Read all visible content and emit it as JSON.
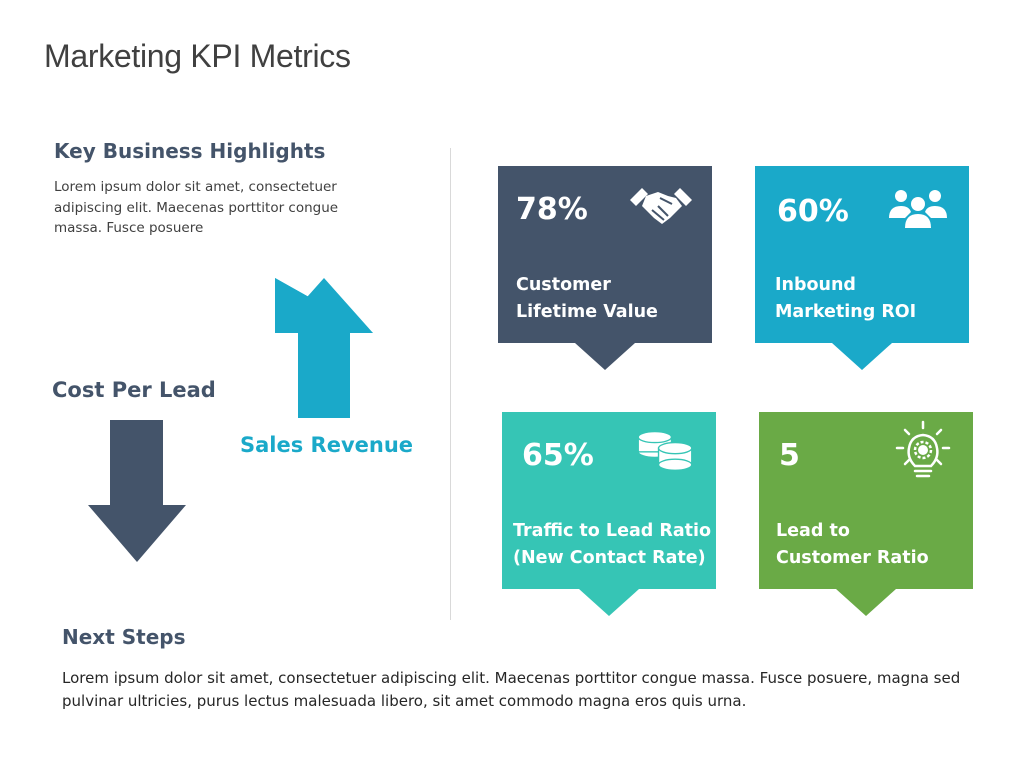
{
  "title": "Marketing KPI Metrics",
  "key_highlights": {
    "heading": "Key Business Highlights",
    "text": "Lorem ipsum dolor sit amet, consectetuer adipiscing elit. Maecenas porttitor congue massa. Fusce posuere"
  },
  "arrows": {
    "down_label": "Cost Per Lead",
    "up_label": "Sales Revenue",
    "down_color": "#44546a",
    "up_color": "#1aa9c9"
  },
  "cards": [
    {
      "value": "78%",
      "label_line1": "Customer",
      "label_line2": "Lifetime Value",
      "icon": "handshake-icon",
      "color": "#44546a"
    },
    {
      "value": "60%",
      "label_line1": "Inbound",
      "label_line2": "Marketing ROI",
      "icon": "people-group-icon",
      "color": "#1aa9c9"
    },
    {
      "value": "65%",
      "label_line1": "Traffic to Lead Ratio",
      "label_line2": "(New Contact Rate)",
      "icon": "coins-icon",
      "color": "#36c5b5"
    },
    {
      "value": "5",
      "label_line1": "Lead to",
      "label_line2": "Customer Ratio",
      "icon": "lightbulb-gear-icon",
      "color": "#6aaa46"
    }
  ],
  "next_steps": {
    "heading": "Next Steps",
    "text": "Lorem ipsum dolor sit amet, consectetuer adipiscing elit. Maecenas porttitor congue massa. Fusce posuere, magna sed pulvinar ultricies, purus lectus malesuada libero, sit amet commodo magna eros quis urna."
  }
}
